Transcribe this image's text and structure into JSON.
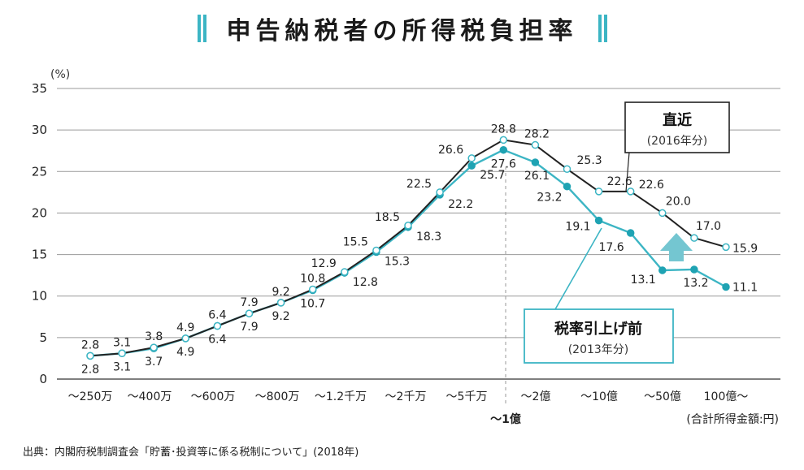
{
  "title": "申告納税者の所得税負担率",
  "source": "出典：内閣府税制調査会「貯蓄･投資等に係る税制について」(2018年)",
  "chart_data": {
    "type": "line",
    "y_unit": "(%)",
    "ylim": [
      0,
      35
    ],
    "yticks": [
      "0",
      "5",
      "10",
      "15",
      "20",
      "25",
      "30",
      "35"
    ],
    "grid": true,
    "x_tick_labels": [
      "～250万",
      "～400万",
      "～600万",
      "～800万",
      "～1.2千万",
      "～2千万",
      "～5千万",
      "～1億",
      "～2億",
      "～10億",
      "～50億",
      "100億～"
    ],
    "x_unit": "(合計所得金額:円)",
    "series": [
      {
        "name": "直近",
        "sub": "(2016年分)",
        "color": "#222222",
        "values": [
          2.8,
          3.1,
          3.8,
          4.9,
          6.4,
          7.9,
          9.2,
          10.8,
          12.9,
          15.5,
          18.5,
          22.5,
          26.6,
          28.8,
          28.2,
          25.3,
          22.6,
          22.6,
          20.0,
          17.0,
          15.9
        ],
        "labels": [
          "2.8",
          "3.1",
          "3.8",
          "4.9",
          "6.4",
          "7.9",
          "9.2",
          "10.8",
          "12.9",
          "15.5",
          "18.5",
          "22.5",
          "26.6",
          "28.8",
          "28.2",
          "25.3",
          "22.6",
          "22.6",
          "20.0",
          "17.0",
          "15.9"
        ]
      },
      {
        "name": "税率引上げ前",
        "sub": "(2013年分)",
        "color": "#3cb5c4",
        "values": [
          2.8,
          3.1,
          3.7,
          4.9,
          6.4,
          7.9,
          9.2,
          10.7,
          12.8,
          15.3,
          18.3,
          22.2,
          25.7,
          27.6,
          26.1,
          23.2,
          19.1,
          17.6,
          13.1,
          13.2,
          11.1
        ],
        "labels": [
          "2.8",
          "3.1",
          "3.7",
          "4.9",
          "6.4",
          "7.9",
          "9.2",
          "10.7",
          "12.8",
          "15.3",
          "18.3",
          "22.2",
          "25.7",
          "27.6",
          "26.1",
          "23.2",
          "19.1",
          "17.6",
          "13.1",
          "13.2",
          "11.1"
        ]
      }
    ]
  }
}
